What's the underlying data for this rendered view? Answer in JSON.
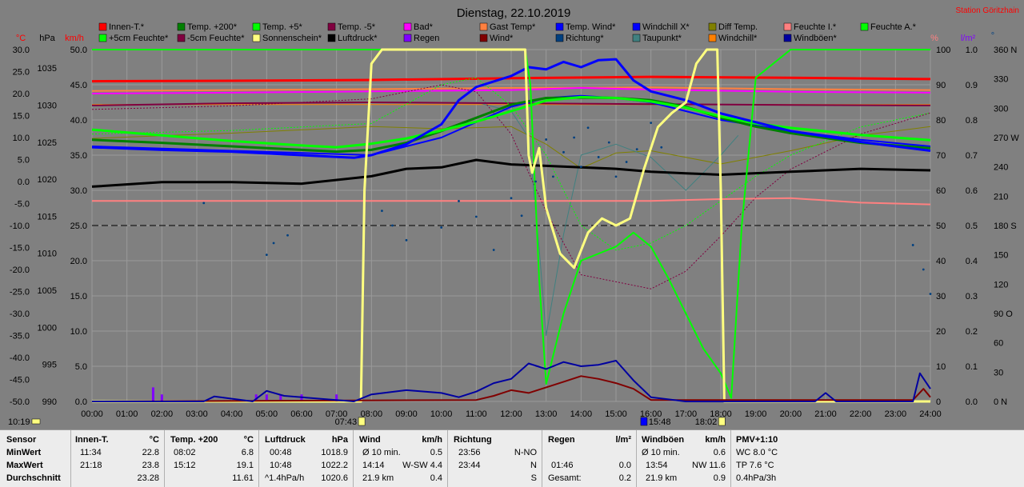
{
  "title": "Dienstag, 22.10.2019",
  "station": "Station Göritzhain",
  "axes": {
    "c_unit": "°C",
    "hpa_unit": "hPa",
    "kmh_unit": "km/h",
    "pct_unit": "%",
    "lm2_unit": "l/m²",
    "deg_unit": "°",
    "c_ticks": [
      "30.0",
      "25.0",
      "20.0",
      "15.0",
      "10.0",
      "5.0",
      "0.0",
      "-5.0",
      "-10.0",
      "-15.0",
      "-20.0",
      "-25.0",
      "-30.0",
      "-35.0",
      "-40.0",
      "-45.0",
      "-50.0"
    ],
    "hpa_ticks": [
      "1035",
      "1030",
      "1025",
      "1020",
      "1015",
      "1010",
      "1005",
      "1000",
      "995",
      "990"
    ],
    "kmh_ticks": [
      "50.0",
      "45.0",
      "40.0",
      "35.0",
      "30.0",
      "25.0",
      "20.0",
      "15.0",
      "10.0",
      "5.0",
      "0.0"
    ],
    "pct_ticks": [
      "100",
      "90",
      "80",
      "70",
      "60",
      "50",
      "40",
      "30",
      "20",
      "10",
      "0"
    ],
    "lm2_ticks": [
      "1.0",
      "0.9",
      "0.8",
      "0.7",
      "0.6",
      "0.5",
      "0.4",
      "0.3",
      "0.2",
      "0.1",
      "0.0"
    ],
    "deg_ticks": [
      "360 N",
      "330",
      "300",
      "270 W",
      "240",
      "210",
      "180 S",
      "150",
      "120",
      "90 O",
      "60",
      "30",
      "0 N"
    ],
    "time_ticks": [
      "00:00",
      "01:00",
      "02:00",
      "03:00",
      "04:00",
      "05:00",
      "06:00",
      "07:00",
      "08:00",
      "09:00",
      "10:00",
      "11:00",
      "12:00",
      "13:00",
      "14:00",
      "15:00",
      "16:00",
      "17:00",
      "18:00",
      "19:00",
      "20:00",
      "21:00",
      "22:00",
      "23:00",
      "24:00"
    ],
    "sun_markers": [
      {
        "label": "10:19",
        "x": 0
      },
      {
        "label": "07:43",
        "x": 7.72
      },
      {
        "label": "15:48",
        "x": 15.8
      },
      {
        "label": "18:02",
        "x": 18.03
      }
    ]
  },
  "legend": [
    {
      "label": "Innen-T.*",
      "color": "#ff0000"
    },
    {
      "label": "Temp. +200*",
      "color": "#008000"
    },
    {
      "label": "Temp. +5*",
      "color": "#00ff00"
    },
    {
      "label": "Temp. -5*",
      "color": "#800040"
    },
    {
      "label": "Bad*",
      "color": "#ff00ff"
    },
    {
      "label": "Gast Temp*",
      "color": "#ff8040"
    },
    {
      "label": "Temp. Wind*",
      "color": "#0000ff"
    },
    {
      "label": "Windchill X*",
      "color": "#0000ff"
    },
    {
      "label": "Diff Temp.",
      "color": "#808000"
    },
    {
      "label": "Feuchte I.*",
      "color": "#ff8080"
    },
    {
      "label": "Feuchte A.*",
      "color": "#00ff00"
    },
    {
      "label": "+5cm Feuchte*",
      "color": "#00ff00"
    },
    {
      "label": "-5cm Feuchte*",
      "color": "#800040"
    },
    {
      "label": "Sonnenschein*",
      "color": "#ffff80"
    },
    {
      "label": "Luftdruck*",
      "color": "#000000"
    },
    {
      "label": "Regen",
      "color": "#8000ff"
    },
    {
      "label": "Wind*",
      "color": "#800000"
    },
    {
      "label": "Richtung*",
      "color": "#004080"
    },
    {
      "label": "Taupunkt*",
      "color": "#408080"
    },
    {
      "label": "Windchill*",
      "color": "#ff8000"
    },
    {
      "label": "Windböen*",
      "color": "#0000a0"
    }
  ],
  "chart_data": {
    "type": "line",
    "title": "Dienstag, 22.10.2019",
    "x_unit": "hour",
    "xlim": [
      0,
      24
    ],
    "axes_ranges": {
      "temp_c": [
        -50,
        30
      ],
      "pressure_hpa": [
        990,
        1037.5
      ],
      "wind_kmh": [
        0,
        50
      ],
      "humidity_pct": [
        0,
        100
      ],
      "rain_lm2": [
        0,
        1.0
      ],
      "direction_deg": [
        0,
        360
      ]
    },
    "series": [
      {
        "name": "Innen-T.*",
        "axis": "temp_c",
        "color": "#ff0000",
        "width": 3,
        "x": [
          0,
          4,
          8,
          12,
          16,
          20,
          24
        ],
        "y": [
          22.8,
          22.9,
          23.1,
          23.5,
          23.8,
          23.6,
          23.3
        ]
      },
      {
        "name": "Bad*",
        "axis": "temp_c",
        "color": "#ff00ff",
        "width": 2,
        "x": [
          0,
          4,
          8,
          12,
          14,
          16,
          20,
          24
        ],
        "y": [
          20.0,
          20.2,
          20.5,
          20.8,
          21.3,
          20.9,
          20.4,
          20.2
        ]
      },
      {
        "name": "Gast Temp*",
        "axis": "temp_c",
        "color": "#ff8040",
        "width": 2,
        "x": [
          0,
          4,
          8,
          12,
          16,
          20,
          24
        ],
        "y": [
          20.6,
          20.8,
          21.0,
          21.3,
          21.4,
          21.0,
          20.8
        ]
      },
      {
        "name": "Temp. -5*",
        "axis": "temp_c",
        "color": "#800040",
        "width": 2,
        "x": [
          0,
          4,
          8,
          12,
          16,
          20,
          24
        ],
        "y": [
          17.3,
          17.8,
          18.0,
          17.8,
          17.6,
          17.4,
          17.3
        ]
      },
      {
        "name": "Luftdruck*",
        "axis": "pressure_hpa",
        "color": "#000000",
        "width": 3,
        "x": [
          0,
          2,
          4,
          6,
          8,
          9,
          10,
          11,
          12,
          13,
          14,
          15,
          16,
          17,
          18,
          20,
          22,
          24
        ],
        "y": [
          1019.0,
          1019.6,
          1019.6,
          1019.4,
          1020.4,
          1021.4,
          1021.6,
          1022.6,
          1022.0,
          1021.8,
          1021.6,
          1021.4,
          1021.0,
          1020.8,
          1020.6,
          1021.0,
          1021.4,
          1021.2
        ]
      },
      {
        "name": "Feuchte I.*",
        "axis": "humidity_pct",
        "color": "#ff8080",
        "width": 2,
        "x": [
          0,
          4,
          8,
          12,
          16,
          18,
          20,
          22,
          24
        ],
        "y": [
          57.0,
          57.0,
          57.0,
          57.0,
          57.0,
          57.5,
          57.8,
          56.5,
          56.0
        ]
      },
      {
        "name": "Temp. +200*",
        "axis": "temp_c",
        "color": "#008000",
        "width": 3,
        "x": [
          0,
          2,
          4,
          6,
          7,
          8,
          9,
          10,
          11,
          12,
          13,
          14,
          15,
          16,
          17,
          18,
          19,
          20,
          22,
          24
        ],
        "y": [
          9.5,
          8.8,
          8.0,
          7.2,
          6.8,
          7.2,
          8.8,
          11.5,
          14.5,
          17.5,
          19.0,
          19.1,
          19.0,
          18.5,
          17.0,
          14.5,
          12.5,
          11.0,
          8.8,
          7.6
        ]
      },
      {
        "name": "Temp. +5*",
        "axis": "temp_c",
        "color": "#00ff00",
        "width": 3,
        "x": [
          0,
          2,
          4,
          6,
          7,
          8,
          9,
          10,
          11,
          12,
          13,
          14,
          15,
          16,
          17,
          18,
          19,
          20,
          22,
          24
        ],
        "y": [
          11.8,
          10.5,
          9.2,
          8.2,
          7.8,
          8.6,
          9.8,
          11.6,
          13.6,
          16.0,
          18.4,
          19.2,
          19.0,
          18.2,
          16.8,
          14.8,
          13.2,
          12.2,
          10.6,
          9.4
        ]
      },
      {
        "name": "Temp. Wind*",
        "axis": "temp_c",
        "color": "#0000ff",
        "width": 3,
        "x": [
          0,
          2,
          4,
          6,
          7.5,
          8,
          9,
          10,
          10.5,
          11,
          12,
          12.5,
          13,
          13.5,
          14,
          14.5,
          15,
          15.5,
          16,
          17,
          18,
          19,
          20,
          22,
          24
        ],
        "y": [
          7.8,
          7.2,
          6.8,
          6.0,
          5.4,
          6.0,
          8.5,
          13.0,
          18.5,
          21.5,
          24.0,
          26.0,
          25.5,
          27.2,
          26.0,
          27.6,
          27.8,
          23.0,
          20.5,
          18.5,
          15.5,
          13.5,
          11.5,
          9.0,
          7.0
        ]
      },
      {
        "name": "Feuchte A.*",
        "axis": "humidity_pct",
        "color": "#00ff00",
        "width": 2,
        "x": [
          0,
          6,
          9,
          11,
          12.4,
          12.55,
          12.8,
          13,
          13.5,
          14,
          15,
          15.5,
          16,
          16.5,
          17,
          17.5,
          18,
          18.3,
          18.6,
          19,
          20,
          24
        ],
        "y": [
          100,
          100,
          100,
          100,
          100,
          90,
          35,
          5,
          25,
          40,
          44,
          48,
          44,
          35,
          25,
          15,
          8,
          1,
          50,
          92,
          100,
          100
        ]
      },
      {
        "name": "Diff Temp.",
        "axis": "temp_c",
        "color": "#808000",
        "width": 1,
        "x": [
          0,
          4,
          8,
          10,
          12,
          13,
          14,
          15,
          16,
          17,
          18,
          20,
          22,
          24
        ],
        "y": [
          9.8,
          11.0,
          12.5,
          12.0,
          12.5,
          8.5,
          3.0,
          6.5,
          7.0,
          5.5,
          4.0,
          7.0,
          10.5,
          12.5
        ]
      },
      {
        "name": "Taupunkt*",
        "axis": "temp_c",
        "color": "#408080",
        "width": 1,
        "x": [
          11,
          12,
          12.5,
          12.8,
          13,
          13.5,
          14,
          15,
          16,
          17,
          18,
          18.5
        ],
        "y": [
          18.0,
          16.0,
          10.0,
          -15.0,
          -35.0,
          -12.0,
          6.0,
          8.5,
          5.5,
          -2.0,
          6.0,
          10.5
        ]
      },
      {
        "name": "+5cm Feuchte*",
        "axis": "humidity_pct",
        "color": "#00ff00",
        "width": 1,
        "dash": "2,2",
        "x": [
          0,
          4,
          8,
          10,
          11,
          12,
          13,
          14,
          15,
          16,
          17,
          18,
          19,
          20,
          22,
          24
        ],
        "y": [
          76,
          77,
          79,
          90,
          92,
          84,
          70,
          50,
          43,
          45,
          50,
          57,
          64,
          70,
          78,
          82
        ]
      },
      {
        "name": "-5cm Feuchte*",
        "axis": "humidity_pct",
        "color": "#800040",
        "width": 1,
        "dash": "2,2",
        "x": [
          0,
          4,
          8,
          10,
          11,
          12,
          13,
          14,
          15,
          16,
          17,
          18,
          19,
          20,
          22,
          24
        ],
        "y": [
          83,
          84,
          86,
          90,
          88,
          76,
          54,
          36,
          34,
          32,
          37,
          47,
          58,
          66,
          76,
          82
        ]
      },
      {
        "name": "Sonnenschein*",
        "axis": "humidity_pct",
        "color": "#ffff80",
        "width": 3,
        "x": [
          0,
          7.7,
          7.8,
          8.0,
          8.3,
          8.6,
          11,
          12.4,
          12.5,
          12.6,
          12.8,
          13,
          13.4,
          13.8,
          14.2,
          14.6,
          15,
          15.4,
          15.8,
          16.2,
          16.6,
          17,
          17.3,
          17.6,
          17.9,
          18.0,
          18.1,
          24
        ],
        "y": [
          0,
          0,
          60,
          96,
          100,
          100,
          100,
          100,
          70,
          65,
          72,
          55,
          42,
          38,
          48,
          52,
          50,
          52,
          66,
          78,
          82,
          85,
          96,
          100,
          100,
          60,
          0,
          0
        ]
      },
      {
        "name": "Windchill X*",
        "axis": "temp_c",
        "color": "#0000ff",
        "width": 2,
        "x": [
          0,
          4,
          8,
          10,
          12,
          13,
          14,
          15,
          16,
          17,
          18,
          20,
          22,
          24
        ],
        "y": [
          8.0,
          7.0,
          6.0,
          10.0,
          17.0,
          19.0,
          19.5,
          19.0,
          18.0,
          16.0,
          14.0,
          11.5,
          9.5,
          8.0
        ]
      },
      {
        "name": "Windchill*",
        "axis": "temp_c",
        "color": "#ff8000",
        "width": 1,
        "x": [
          0,
          4,
          8,
          12,
          16,
          20,
          24
        ],
        "y": [
          17.5,
          17.5,
          17.5,
          17.5,
          17.5,
          17.5,
          17.5
        ]
      },
      {
        "name": "Wind*",
        "axis": "wind_kmh",
        "color": "#800000",
        "width": 2,
        "x": [
          0,
          11,
          11.5,
          12,
          12.5,
          13,
          13.5,
          14,
          14.5,
          15,
          15.5,
          16,
          23.5,
          23.8,
          24
        ],
        "y": [
          0,
          0.2,
          0.8,
          1.6,
          1.2,
          2.0,
          2.8,
          3.6,
          3.2,
          2.6,
          1.8,
          0.2,
          0.2,
          1.8,
          0.6
        ]
      },
      {
        "name": "Windböen*",
        "axis": "wind_kmh",
        "color": "#0000a0",
        "width": 2,
        "x": [
          0,
          3.2,
          3.5,
          4.6,
          5,
          5.5,
          7.5,
          8,
          9,
          10,
          10.5,
          11,
          11.5,
          12,
          12.5,
          13,
          13.5,
          14,
          14.5,
          15,
          15.5,
          16,
          17,
          20.7,
          21,
          21.3,
          23.5,
          23.7,
          24
        ],
        "y": [
          0,
          0,
          0.7,
          0,
          1.5,
          0.8,
          0,
          1.0,
          1.6,
          1.2,
          0.6,
          1.4,
          2.6,
          3.2,
          5.4,
          4.6,
          5.6,
          5.0,
          5.2,
          5.8,
          3.0,
          0.6,
          0,
          0,
          1.2,
          0,
          0,
          4.0,
          1.8
        ]
      },
      {
        "name": "Richtung*",
        "axis": "direction_deg",
        "color": "#004080",
        "type": "scatter",
        "x": [
          3.2,
          5,
          5.2,
          5.6,
          8.3,
          8.6,
          9,
          10,
          10.5,
          11,
          11.5,
          12,
          12.3,
          12.7,
          13,
          13.2,
          13.5,
          13.8,
          14,
          14.2,
          14.5,
          14.8,
          15,
          15.3,
          15.6,
          16,
          16.3,
          23.5,
          23.8,
          24
        ],
        "y": [
          203,
          150,
          162,
          170,
          195,
          180,
          165,
          178,
          205,
          189,
          155,
          208,
          190,
          225,
          268,
          230,
          255,
          270,
          240,
          280,
          250,
          265,
          230,
          245,
          258,
          285,
          260,
          160,
          135,
          110
        ]
      },
      {
        "name": "Regen",
        "axis": "rain_lm2",
        "color": "#8000ff",
        "type": "bar",
        "x": [
          1.75,
          2.0,
          4.7,
          5.0,
          5.4,
          6.0,
          7.0
        ],
        "y": [
          0.04,
          0.02,
          0.02,
          0.02,
          0.02,
          0.02,
          0.02
        ]
      }
    ]
  },
  "stats": {
    "row_labels": [
      "Sensor",
      "MinWert",
      "MaxWert",
      "Durchschnitt"
    ],
    "innen": {
      "title": "Innen-T.",
      "unit": "°C",
      "min_time": "11:34",
      "min_val": "22.8",
      "max_time": "21:18",
      "max_val": "23.8",
      "avg": "23.28"
    },
    "temp200": {
      "title": "Temp. +200",
      "unit": "°C",
      "min_time": "08:02",
      "min_val": "6.8",
      "max_time": "15:12",
      "max_val": "19.1",
      "avg": "11.61"
    },
    "luftdruck": {
      "title": "Luftdruck",
      "unit": "hPa",
      "min_time": "00:48",
      "min_val": "1018.9",
      "max_time": "10:48",
      "max_val": "1022.2",
      "trend": "^1.4hPa/h",
      "avg": "1020.6"
    },
    "wind": {
      "title": "Wind",
      "unit": "km/h",
      "r1a": "Ø 10 min.",
      "r1b": "0.5",
      "r2a": "14:14",
      "r2b": "W-SW 4.4",
      "r3a": "21.9 km",
      "r3b": "0.4"
    },
    "richtung": {
      "title": "Richtung",
      "r1a": "23:56",
      "r1b": "N-NO",
      "r2a": "23:44",
      "r2b": "N",
      "r3b": "S"
    },
    "regen": {
      "title": "Regen",
      "unit": "l/m²",
      "r2a": "01:46",
      "r2b": "0.0",
      "r3a": "Gesamt:",
      "r3b": "0.2"
    },
    "windboen": {
      "title": "Windböen",
      "unit": "km/h",
      "r1a": "Ø 10 min.",
      "r1b": "0.6",
      "r2a": "13:54",
      "r2b": "NW 11.6",
      "r3a": "21.9 km",
      "r3b": "0.9"
    },
    "pmv": {
      "title": "PMV+1:10",
      "r1": "WC 8.0 °C",
      "r2": "TP 7.6 °C",
      "r3": "0.4hPa/3h"
    }
  }
}
